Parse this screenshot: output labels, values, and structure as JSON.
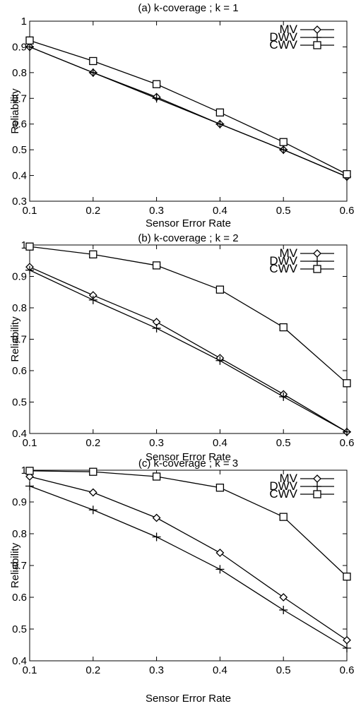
{
  "chart_data": [
    {
      "type": "line",
      "title": "(a) k-coverage ; k = 1",
      "xlabel": "Sensor Error Rate",
      "ylabel": "Reliability",
      "x": [
        0.1,
        0.2,
        0.3,
        0.4,
        0.5,
        0.6
      ],
      "xlim": [
        0.1,
        0.6
      ],
      "ylim": [
        0.3,
        1.0
      ],
      "xticks": [
        "0.1",
        "0.2",
        "0.3",
        "0.4",
        "0.5",
        "0.6"
      ],
      "yticks": [
        "0.3",
        "0.4",
        "0.5",
        "0.6",
        "0.7",
        "0.8",
        "0.9",
        "1"
      ],
      "grid": false,
      "legend_position": "top-right",
      "series": [
        {
          "name": "MV",
          "marker": "diamond",
          "values": [
            0.9,
            0.8,
            0.705,
            0.6,
            0.5,
            0.395
          ]
        },
        {
          "name": "DWV",
          "marker": "plus",
          "values": [
            0.9,
            0.8,
            0.7,
            0.6,
            0.5,
            0.395
          ]
        },
        {
          "name": "CWV",
          "marker": "square",
          "values": [
            0.925,
            0.845,
            0.755,
            0.645,
            0.53,
            0.405
          ]
        }
      ]
    },
    {
      "type": "line",
      "title": "(b) k-coverage ; k = 2",
      "xlabel": "Sensor Error Rate",
      "ylabel": "Reliability",
      "x": [
        0.1,
        0.2,
        0.3,
        0.4,
        0.5,
        0.6
      ],
      "xlim": [
        0.1,
        0.6
      ],
      "ylim": [
        0.4,
        1.0
      ],
      "xticks": [
        "0.1",
        "0.2",
        "0.3",
        "0.4",
        "0.5",
        "0.6"
      ],
      "yticks": [
        "0.4",
        "0.5",
        "0.6",
        "0.7",
        "0.8",
        "0.9",
        "1"
      ],
      "grid": false,
      "legend_position": "top-right",
      "series": [
        {
          "name": "MV",
          "marker": "diamond",
          "values": [
            0.93,
            0.84,
            0.755,
            0.64,
            0.525,
            0.405
          ]
        },
        {
          "name": "DWV",
          "marker": "plus",
          "values": [
            0.92,
            0.825,
            0.735,
            0.632,
            0.517,
            0.405
          ]
        },
        {
          "name": "CWV",
          "marker": "square",
          "values": [
            0.995,
            0.97,
            0.935,
            0.858,
            0.738,
            0.56
          ]
        }
      ]
    },
    {
      "type": "line",
      "title": "(c) k-coverage ; k = 3",
      "xlabel": "Sensor Error Rate",
      "ylabel": "Reliability",
      "x": [
        0.1,
        0.2,
        0.3,
        0.4,
        0.5,
        0.6
      ],
      "xlim": [
        0.1,
        0.6
      ],
      "ylim": [
        0.4,
        1.0
      ],
      "xticks": [
        "0.1",
        "0.2",
        "0.3",
        "0.4",
        "0.5",
        "0.6"
      ],
      "yticks": [
        "0.4",
        "0.5",
        "0.6",
        "0.7",
        "0.8",
        "0.9",
        "1"
      ],
      "grid": false,
      "legend_position": "top-right",
      "series": [
        {
          "name": "MV",
          "marker": "diamond",
          "values": [
            0.98,
            0.93,
            0.85,
            0.74,
            0.6,
            0.465
          ]
        },
        {
          "name": "DWV",
          "marker": "plus",
          "values": [
            0.95,
            0.875,
            0.79,
            0.688,
            0.56,
            0.44
          ]
        },
        {
          "name": "CWV",
          "marker": "square",
          "values": [
            0.998,
            0.995,
            0.98,
            0.945,
            0.853,
            0.665
          ]
        }
      ]
    }
  ]
}
